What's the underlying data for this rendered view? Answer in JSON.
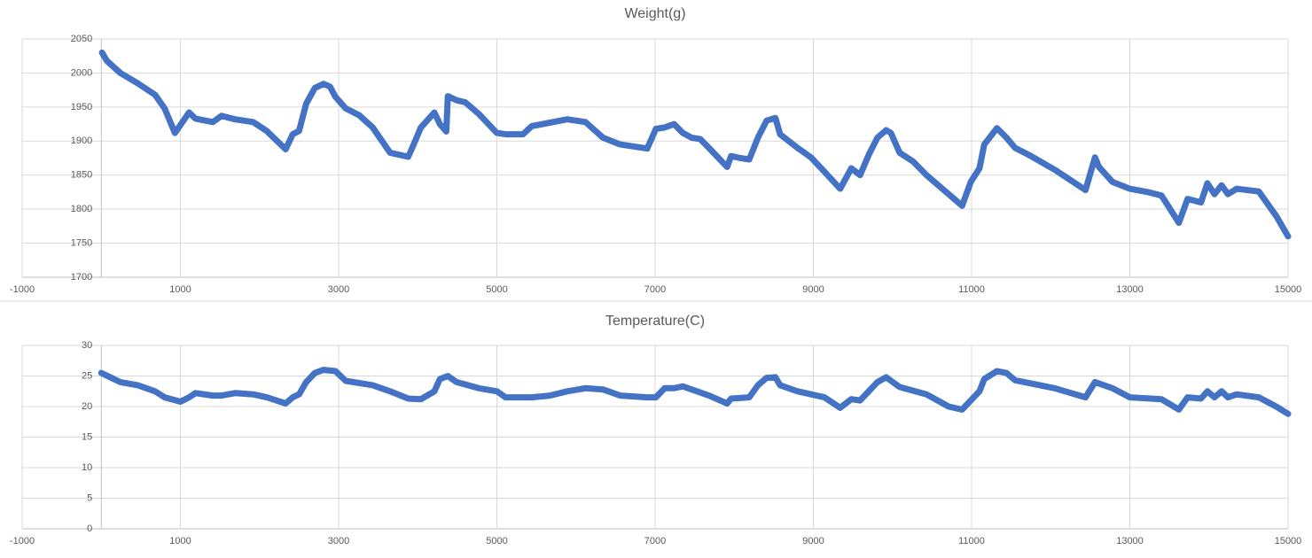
{
  "chart_data": [
    {
      "type": "line",
      "title": "Weight(g)",
      "color": "#4472c4",
      "grid": true,
      "xlim": [
        -1000,
        15000
      ],
      "xticks": [
        -1000,
        1000,
        3000,
        5000,
        7000,
        9000,
        11000,
        13000,
        15000
      ],
      "ylim": [
        1700,
        2050
      ],
      "yticks": [
        1700,
        1750,
        1800,
        1850,
        1900,
        1950,
        2000,
        2050
      ],
      "x": [
        10,
        70,
        240,
        460,
        680,
        800,
        930,
        1110,
        1190,
        1410,
        1520,
        1690,
        1920,
        2090,
        2330,
        2420,
        2500,
        2590,
        2700,
        2810,
        2890,
        2960,
        3090,
        3260,
        3430,
        3650,
        3880,
        3930,
        4040,
        4210,
        4280,
        4360,
        4380,
        4490,
        4600,
        4770,
        5000,
        5110,
        5330,
        5440,
        5670,
        5890,
        6120,
        6340,
        6560,
        6900,
        7010,
        7120,
        7240,
        7350,
        7460,
        7570,
        7680,
        7910,
        7960,
        8080,
        8190,
        8300,
        8410,
        8520,
        8580,
        8800,
        8970,
        9140,
        9340,
        9480,
        9590,
        9700,
        9810,
        9920,
        9980,
        10090,
        10260,
        10430,
        10710,
        10880,
        10990,
        11100,
        11160,
        11320,
        11440,
        11550,
        11720,
        12050,
        12440,
        12560,
        12610,
        12780,
        13000,
        13230,
        13400,
        13620,
        13730,
        13900,
        13980,
        14070,
        14160,
        14240,
        14350,
        14630,
        14850,
        15000
      ],
      "values": [
        2030,
        2018,
        2000,
        1985,
        1968,
        1948,
        1912,
        1942,
        1933,
        1928,
        1937,
        1932,
        1928,
        1915,
        1888,
        1910,
        1915,
        1955,
        1978,
        1984,
        1980,
        1965,
        1948,
        1938,
        1920,
        1883,
        1877,
        1890,
        1920,
        1942,
        1925,
        1914,
        1966,
        1960,
        1957,
        1940,
        1912,
        1910,
        1910,
        1922,
        1927,
        1932,
        1928,
        1905,
        1895,
        1889,
        1918,
        1920,
        1925,
        1912,
        1905,
        1903,
        1890,
        1862,
        1878,
        1875,
        1873,
        1905,
        1930,
        1934,
        1910,
        1890,
        1876,
        1855,
        1830,
        1860,
        1850,
        1880,
        1905,
        1916,
        1912,
        1883,
        1870,
        1850,
        1822,
        1805,
        1840,
        1860,
        1895,
        1919,
        1905,
        1890,
        1880,
        1858,
        1828,
        1876,
        1862,
        1840,
        1830,
        1825,
        1820,
        1780,
        1815,
        1810,
        1838,
        1822,
        1835,
        1822,
        1830,
        1826,
        1790,
        1760
      ]
    },
    {
      "type": "line",
      "title": "Temperature(C)",
      "color": "#4472c4",
      "grid": true,
      "xlim": [
        -1000,
        15000
      ],
      "xticks": [
        -1000,
        1000,
        3000,
        5000,
        7000,
        9000,
        11000,
        13000,
        15000
      ],
      "ylim": [
        0,
        30
      ],
      "yticks": [
        0,
        5,
        10,
        15,
        20,
        25,
        30
      ],
      "x": [
        0,
        240,
        460,
        680,
        800,
        1000,
        1110,
        1190,
        1410,
        1520,
        1690,
        1920,
        2090,
        2330,
        2420,
        2500,
        2590,
        2700,
        2810,
        2960,
        3090,
        3430,
        3650,
        3880,
        4040,
        4210,
        4280,
        4380,
        4490,
        4770,
        5000,
        5110,
        5440,
        5670,
        5890,
        6120,
        6340,
        6560,
        6900,
        7010,
        7120,
        7240,
        7350,
        7460,
        7680,
        7910,
        7960,
        8190,
        8300,
        8410,
        8520,
        8580,
        8800,
        9140,
        9340,
        9480,
        9590,
        9700,
        9810,
        9920,
        10090,
        10430,
        10710,
        10880,
        10990,
        11100,
        11160,
        11320,
        11440,
        11550,
        12050,
        12440,
        12560,
        12780,
        13000,
        13400,
        13620,
        13730,
        13900,
        13980,
        14070,
        14160,
        14240,
        14350,
        14630,
        14850,
        15000
      ],
      "values": [
        25.5,
        24,
        23.5,
        22.5,
        21.5,
        20.8,
        21.5,
        22.2,
        21.8,
        21.8,
        22.2,
        22,
        21.5,
        20.5,
        21.5,
        22,
        24,
        25.5,
        26,
        25.8,
        24.2,
        23.5,
        22.5,
        21.3,
        21.2,
        22.5,
        24.5,
        25,
        24,
        23,
        22.5,
        21.5,
        21.5,
        21.8,
        22.5,
        23,
        22.8,
        21.8,
        21.5,
        21.5,
        23,
        23,
        23.3,
        22.8,
        21.8,
        20.5,
        21.3,
        21.5,
        23.5,
        24.7,
        24.8,
        23.5,
        22.5,
        21.5,
        19.8,
        21.2,
        21,
        22.5,
        24,
        24.8,
        23.2,
        22,
        20,
        19.5,
        21,
        22.5,
        24.5,
        25.8,
        25.5,
        24.3,
        23,
        21.5,
        24,
        23,
        21.5,
        21.2,
        19.5,
        21.5,
        21.3,
        22.5,
        21.5,
        22.5,
        21.5,
        22,
        21.5,
        20,
        18.8
      ]
    }
  ]
}
